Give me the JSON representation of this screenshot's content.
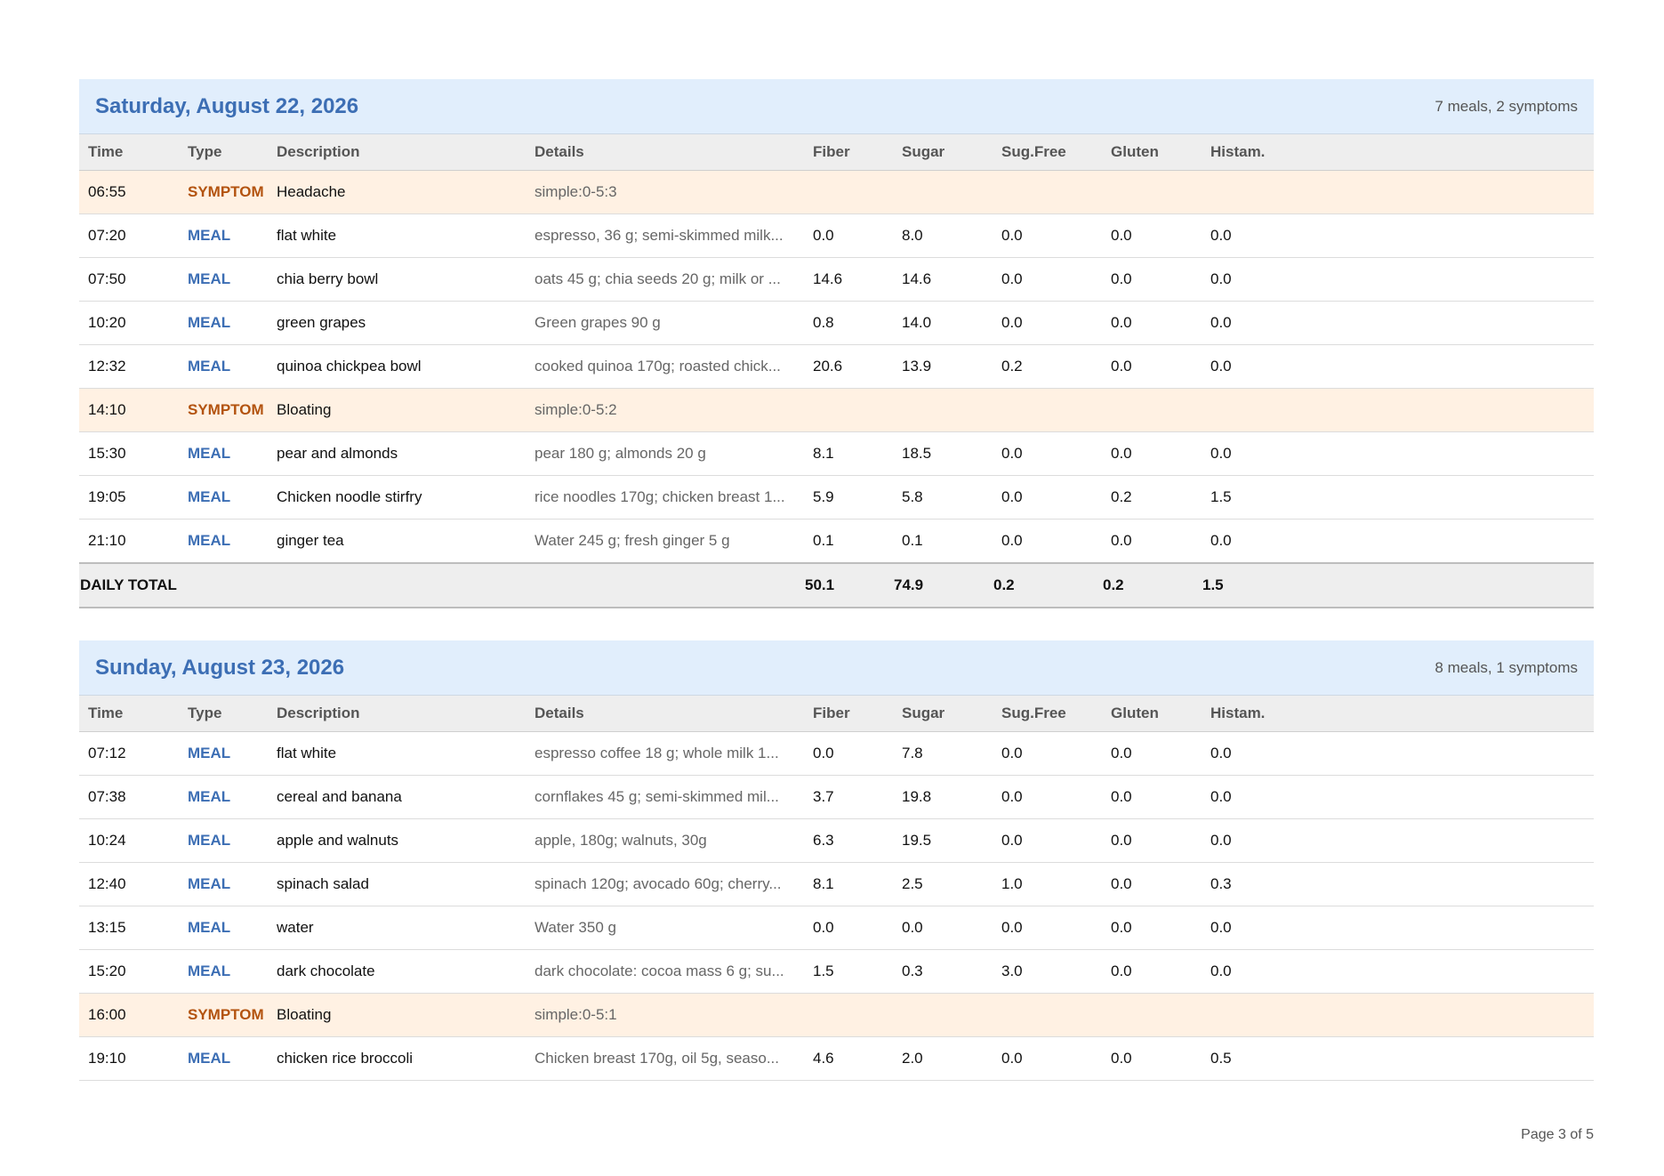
{
  "columns": [
    "Time",
    "Type",
    "Description",
    "Details",
    "Fiber",
    "Sugar",
    "Sug.Free",
    "Gluten",
    "Histam."
  ],
  "days": [
    {
      "title": "Saturday, August 22, 2026",
      "summary": "7 meals, 2 symptoms",
      "rows": [
        {
          "time": "06:55",
          "type": "SYMPTOM",
          "description": "Headache",
          "details": "simple:0-5:3",
          "fiber": "",
          "sugar": "",
          "sugfree": "",
          "gluten": "",
          "histam": ""
        },
        {
          "time": "07:20",
          "type": "MEAL",
          "description": "flat white",
          "details": "espresso, 36 g; semi-skimmed milk...",
          "fiber": "0.0",
          "sugar": "8.0",
          "sugfree": "0.0",
          "gluten": "0.0",
          "histam": "0.0"
        },
        {
          "time": "07:50",
          "type": "MEAL",
          "description": "chia berry bowl",
          "details": "oats 45 g; chia seeds 20 g; milk or ...",
          "fiber": "14.6",
          "sugar": "14.6",
          "sugfree": "0.0",
          "gluten": "0.0",
          "histam": "0.0"
        },
        {
          "time": "10:20",
          "type": "MEAL",
          "description": "green grapes",
          "details": "Green grapes 90 g",
          "fiber": "0.8",
          "sugar": "14.0",
          "sugfree": "0.0",
          "gluten": "0.0",
          "histam": "0.0"
        },
        {
          "time": "12:32",
          "type": "MEAL",
          "description": "quinoa chickpea bowl",
          "details": "cooked quinoa 170g; roasted chick...",
          "fiber": "20.6",
          "sugar": "13.9",
          "sugfree": "0.2",
          "gluten": "0.0",
          "histam": "0.0"
        },
        {
          "time": "14:10",
          "type": "SYMPTOM",
          "description": "Bloating",
          "details": "simple:0-5:2",
          "fiber": "",
          "sugar": "",
          "sugfree": "",
          "gluten": "",
          "histam": ""
        },
        {
          "time": "15:30",
          "type": "MEAL",
          "description": "pear and almonds",
          "details": "pear 180 g; almonds 20 g",
          "fiber": "8.1",
          "sugar": "18.5",
          "sugfree": "0.0",
          "gluten": "0.0",
          "histam": "0.0"
        },
        {
          "time": "19:05",
          "type": "MEAL",
          "description": "Chicken noodle stirfry",
          "details": "rice noodles 170g; chicken breast 1...",
          "fiber": "5.9",
          "sugar": "5.8",
          "sugfree": "0.0",
          "gluten": "0.2",
          "histam": "1.5"
        },
        {
          "time": "21:10",
          "type": "MEAL",
          "description": "ginger tea",
          "details": "Water 245 g; fresh ginger 5 g",
          "fiber": "0.1",
          "sugar": "0.1",
          "sugfree": "0.0",
          "gluten": "0.0",
          "histam": "0.0"
        }
      ],
      "total": {
        "label": "DAILY TOTAL",
        "fiber": "50.1",
        "sugar": "74.9",
        "sugfree": "0.2",
        "gluten": "0.2",
        "histam": "1.5"
      }
    },
    {
      "title": "Sunday, August 23, 2026",
      "summary": "8 meals, 1 symptoms",
      "rows": [
        {
          "time": "07:12",
          "type": "MEAL",
          "description": "flat white",
          "details": "espresso coffee 18 g; whole milk 1...",
          "fiber": "0.0",
          "sugar": "7.8",
          "sugfree": "0.0",
          "gluten": "0.0",
          "histam": "0.0"
        },
        {
          "time": "07:38",
          "type": "MEAL",
          "description": "cereal and banana",
          "details": "cornflakes 45 g; semi-skimmed mil...",
          "fiber": "3.7",
          "sugar": "19.8",
          "sugfree": "0.0",
          "gluten": "0.0",
          "histam": "0.0"
        },
        {
          "time": "10:24",
          "type": "MEAL",
          "description": "apple and walnuts",
          "details": "apple, 180g; walnuts, 30g",
          "fiber": "6.3",
          "sugar": "19.5",
          "sugfree": "0.0",
          "gluten": "0.0",
          "histam": "0.0"
        },
        {
          "time": "12:40",
          "type": "MEAL",
          "description": "spinach salad",
          "details": "spinach 120g; avocado 60g; cherry...",
          "fiber": "8.1",
          "sugar": "2.5",
          "sugfree": "1.0",
          "gluten": "0.0",
          "histam": "0.3"
        },
        {
          "time": "13:15",
          "type": "MEAL",
          "description": "water",
          "details": "Water 350 g",
          "fiber": "0.0",
          "sugar": "0.0",
          "sugfree": "0.0",
          "gluten": "0.0",
          "histam": "0.0"
        },
        {
          "time": "15:20",
          "type": "MEAL",
          "description": "dark chocolate",
          "details": "dark chocolate: cocoa mass 6 g; su...",
          "fiber": "1.5",
          "sugar": "0.3",
          "sugfree": "3.0",
          "gluten": "0.0",
          "histam": "0.0"
        },
        {
          "time": "16:00",
          "type": "SYMPTOM",
          "description": "Bloating",
          "details": "simple:0-5:1",
          "fiber": "",
          "sugar": "",
          "sugfree": "",
          "gluten": "",
          "histam": ""
        },
        {
          "time": "19:10",
          "type": "MEAL",
          "description": "chicken rice broccoli",
          "details": "Chicken breast 170g, oil 5g, seaso...",
          "fiber": "4.6",
          "sugar": "2.0",
          "sugfree": "0.0",
          "gluten": "0.0",
          "histam": "0.5"
        }
      ]
    }
  ],
  "footer": {
    "page": "Page 3 of 5"
  },
  "colors": {
    "title": "#3c6eb4",
    "meal": "#3c6eb4",
    "symptom": "#b3530f",
    "symptom_row_bg": "#fff1e3",
    "header_bg": "#e1eefc"
  }
}
